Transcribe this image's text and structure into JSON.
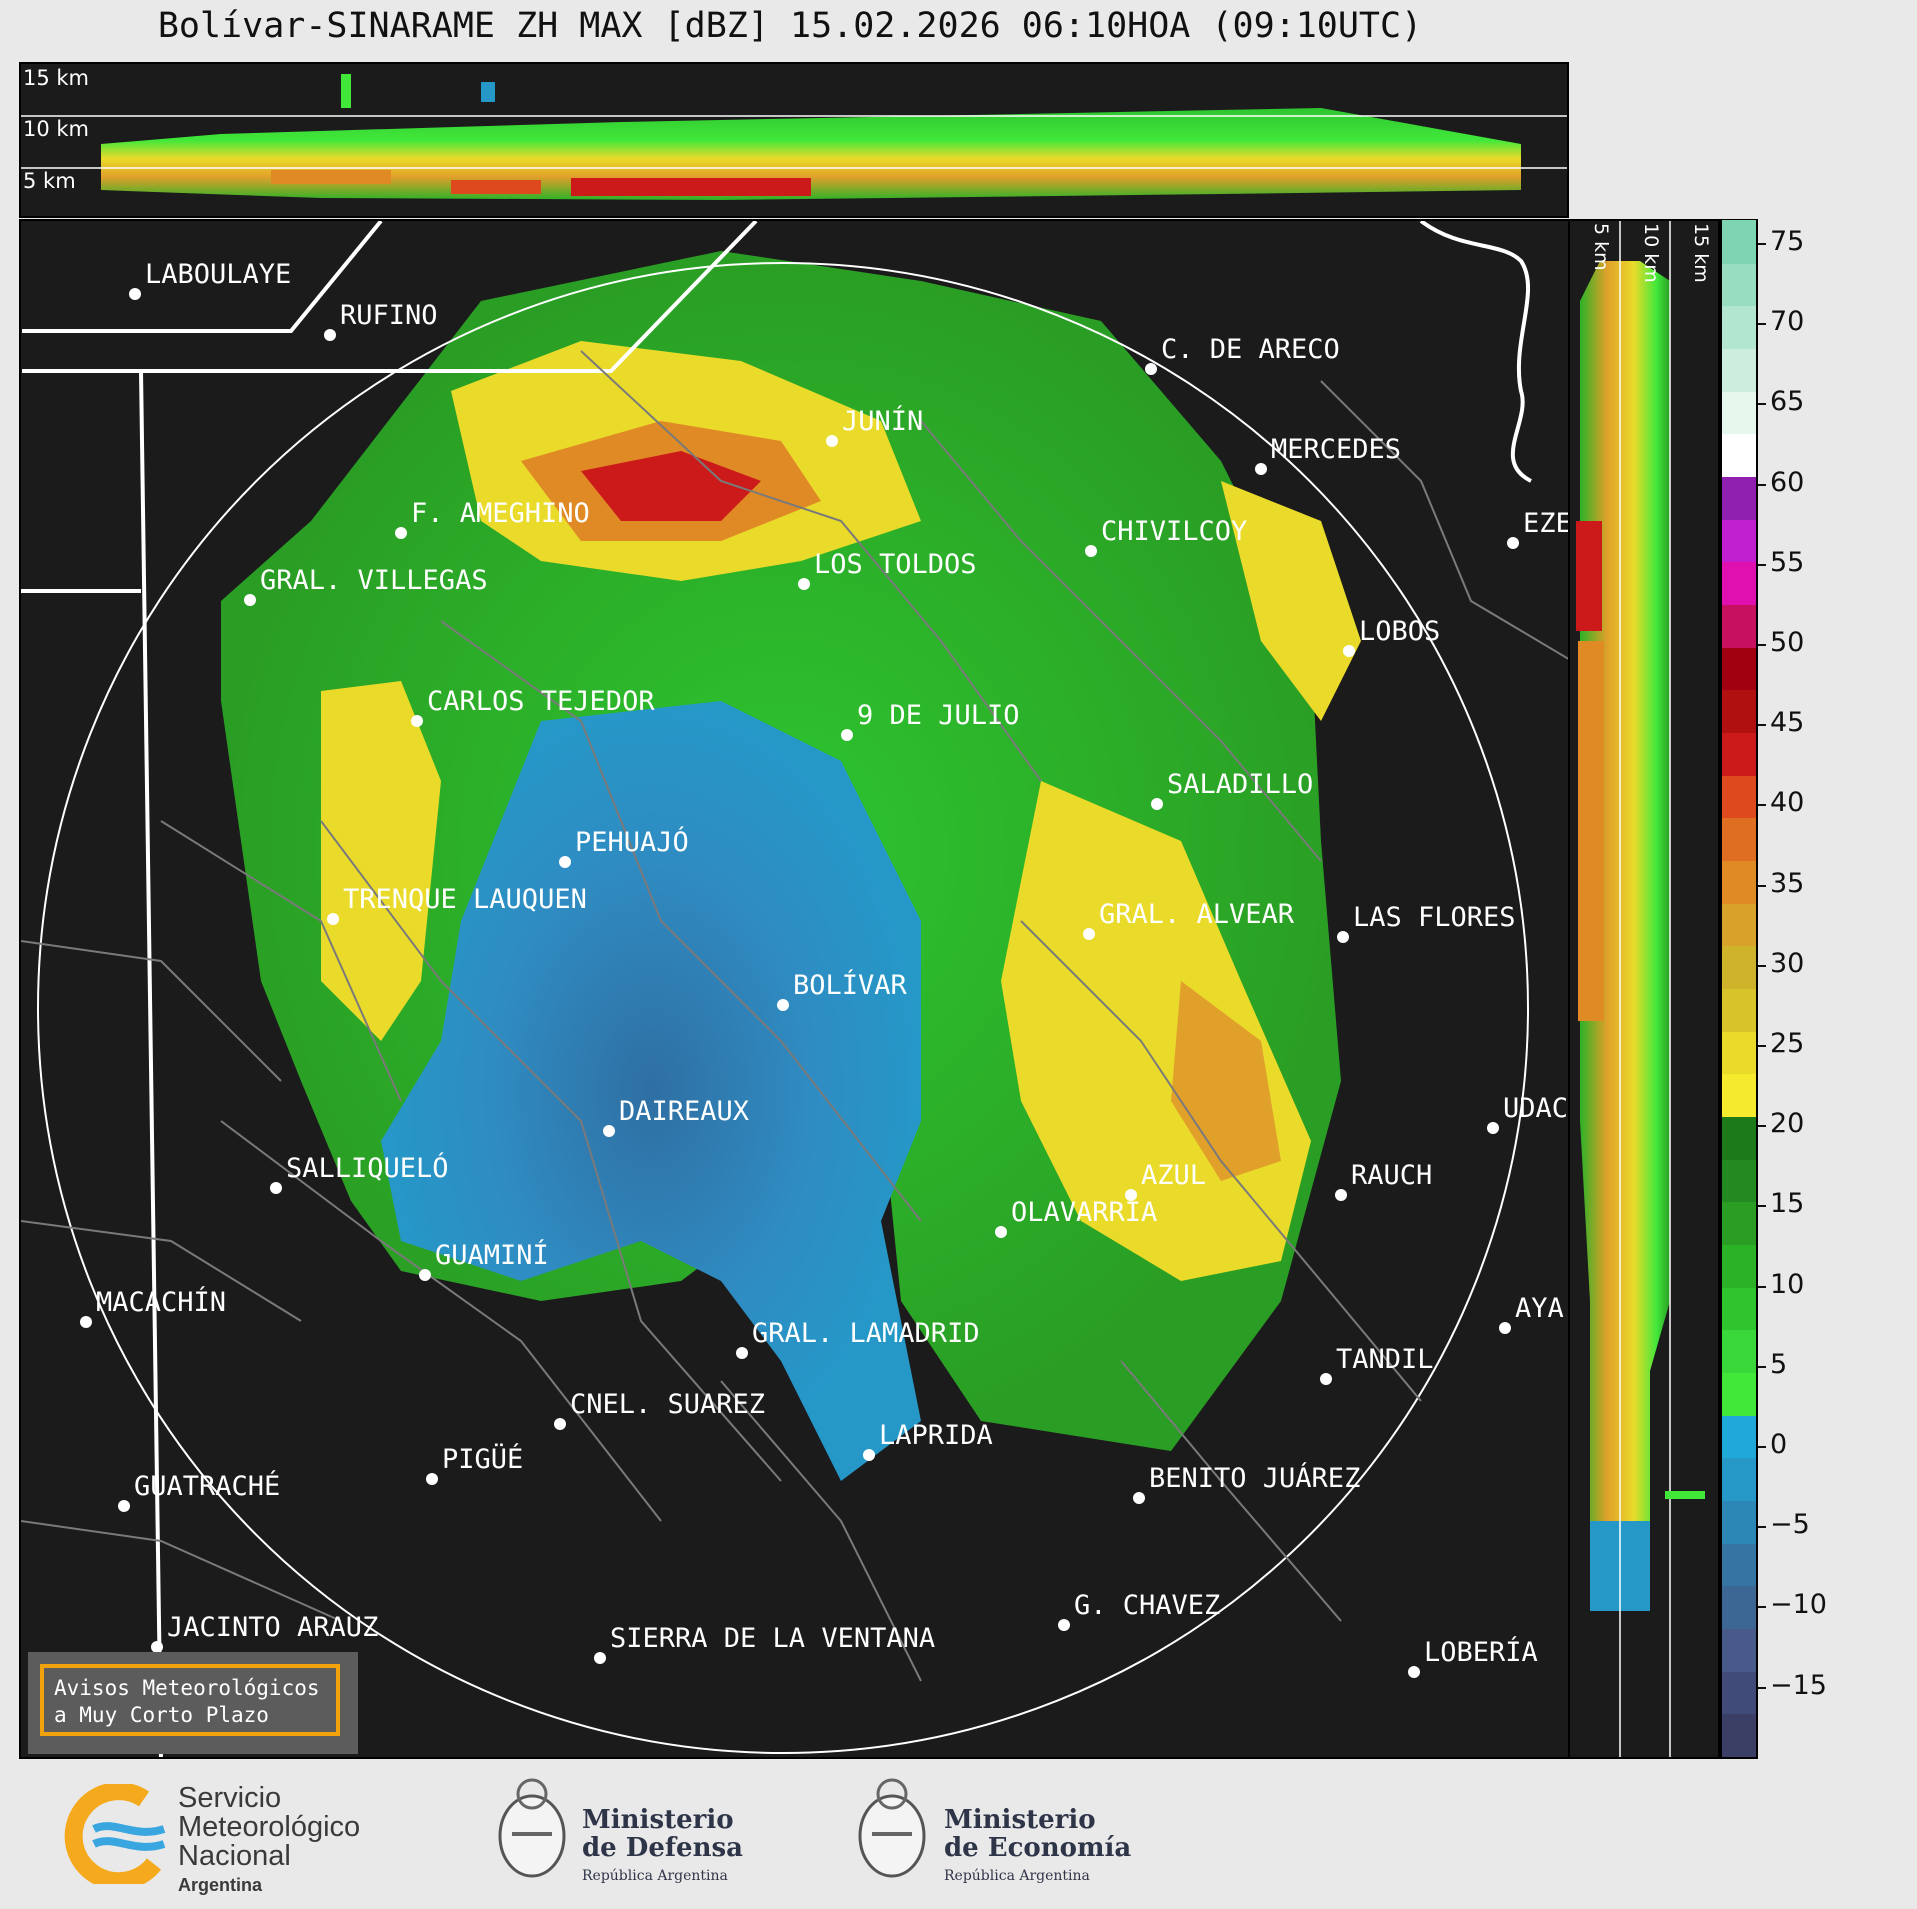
{
  "title": "Bolívar-SINARAME ZH MAX [dBZ] 15.02.2026 06:10HOA (09:10UTC)",
  "top_panel": {
    "altitude_labels": [
      "15 km",
      "10 km",
      "5 km"
    ]
  },
  "right_panel": {
    "altitude_labels": [
      "5 km",
      "10 km",
      "15 km"
    ]
  },
  "scale": {
    "ticks": [
      "75",
      "70",
      "65",
      "60",
      "55",
      "50",
      "45",
      "40",
      "35",
      "30",
      "25",
      "20",
      "15",
      "10",
      "5",
      "0",
      "−5",
      "−10",
      "−15"
    ],
    "colors": [
      "#3b3f66",
      "#414b7a",
      "#485a8a",
      "#3c6795",
      "#3675a3",
      "#2c86b6",
      "#2598c8",
      "#1fa9d8",
      "#41e83a",
      "#3ad73a",
      "#2ec52f",
      "#2cb227",
      "#2a9e24",
      "#228a20",
      "#1c7a18",
      "#f5ea2e",
      "#eadb2a",
      "#d8c42a",
      "#cfb32a",
      "#d8a22a",
      "#e08a25",
      "#e06e22",
      "#de4a1e",
      "#cc1a1a",
      "#b01010",
      "#a00010",
      "#c81060",
      "#e010b0",
      "#c020d0",
      "#9020b0",
      "#ffffff",
      "#e6f7ee",
      "#cdeedf",
      "#b3e6d0",
      "#99ddc1",
      "#7fd4b2"
    ]
  },
  "cities": [
    {
      "name": "LABOULAYE"
    },
    {
      "name": "RUFINO"
    },
    {
      "name": "C. DE ARECO"
    },
    {
      "name": "JUNÍN"
    },
    {
      "name": "MERCEDES"
    },
    {
      "name": "F. AMEGHINO"
    },
    {
      "name": "CHIVILCOY"
    },
    {
      "name": "EZE"
    },
    {
      "name": "LOS TOLDOS"
    },
    {
      "name": "GRAL. VILLEGAS"
    },
    {
      "name": "LOBOS"
    },
    {
      "name": "CARLOS TEJEDOR"
    },
    {
      "name": "9 DE JULIO"
    },
    {
      "name": "SALADILLO"
    },
    {
      "name": "PEHUAJÓ"
    },
    {
      "name": "TRENQUE LAUQUEN"
    },
    {
      "name": "GRAL. ALVEAR"
    },
    {
      "name": "LAS FLORES"
    },
    {
      "name": "BOLÍVAR"
    },
    {
      "name": "UDAC"
    },
    {
      "name": "DAIREAUX"
    },
    {
      "name": "SALLIQUELÓ"
    },
    {
      "name": "AZUL"
    },
    {
      "name": "RAUCH"
    },
    {
      "name": "OLAVARRÍA"
    },
    {
      "name": "GUAMINÍ"
    },
    {
      "name": "MACACHÍN"
    },
    {
      "name": "AYA"
    },
    {
      "name": "GRAL. LAMADRID"
    },
    {
      "name": "TANDIL"
    },
    {
      "name": "CNEL. SUAREZ"
    },
    {
      "name": "LAPRIDA"
    },
    {
      "name": "PIGÜÉ"
    },
    {
      "name": "GUATRACHÉ"
    },
    {
      "name": "BENITO JUÁREZ"
    },
    {
      "name": "G. CHAVEZ"
    },
    {
      "name": "JACINTO ARAUZ"
    },
    {
      "name": "SIERRA DE LA VENTANA"
    },
    {
      "name": "LOBERÍA"
    }
  ],
  "notice": {
    "line1": "Avisos Meteorológicos",
    "line2": "a Muy Corto Plazo"
  },
  "logos": {
    "smn": {
      "line1": "Servicio",
      "line2": "Meteorológico",
      "line3": "Nacional",
      "line4": "Argentina"
    },
    "defensa": {
      "line1": "Ministerio",
      "line2": "de Defensa",
      "line3": "República Argentina"
    },
    "economia": {
      "line1": "Ministerio",
      "line2": "de Economía",
      "line3": "República Argentina"
    }
  }
}
